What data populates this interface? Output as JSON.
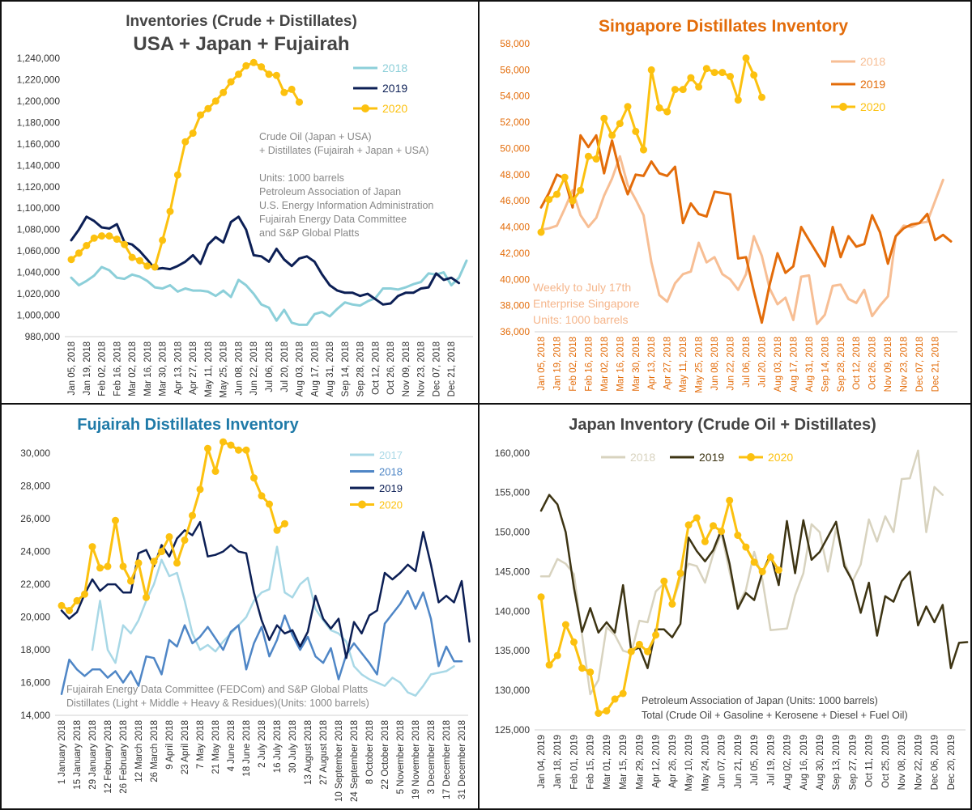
{
  "charts": [
    {
      "id": "usa-japan-fujairah",
      "type": "line",
      "title_line1": "Inventories (Crude + Distillates)",
      "title_line2": "USA + Japan + Fujairah",
      "title_color": "#444444",
      "tick_color": "#333333",
      "ylim": [
        980000,
        1240000
      ],
      "ystep": 20000,
      "yticks_format": "comma",
      "x_count": 53,
      "x_labels": [
        "Jan 05, 2018",
        "Jan 19, 2018",
        "Feb 02, 2018",
        "Feb 16, 2018",
        "Mar 02, 2018",
        "Mar 16, 2018",
        "Mar 30, 2018",
        "Apr 13, 2018",
        "Apr 27, 2018",
        "May 11, 2018",
        "May 25, 2018",
        "Jun 08, 2018",
        "Jun 22, 2018",
        "Jul 06, 2018",
        "Jul 20, 2018",
        "Aug 03, 2018",
        "Aug 17, 2018",
        "Aug 31, 2018",
        "Sep 14, 2018",
        "Sep 28, 2018",
        "Oct 12, 2018",
        "Oct 26, 2018",
        "Nov 09, 2018",
        "Nov 23, 2018",
        "Dec 07, 2018",
        "Dec 21, 2018"
      ],
      "x_label_step": 2,
      "legend": [
        "2018",
        "2019",
        "2020"
      ],
      "annotations": [
        "Crude Oil (Japan + USA)",
        "+ Distillates (Fujairah + Japan + USA)",
        "",
        "Units: 1000 barrels",
        "Petroleum Association of Japan",
        "U.S. Energy Information Administration",
        "Fujairah Energy Data Committee",
        "and S&P Global Platts"
      ],
      "annotation_color": "#888888",
      "series": [
        {
          "name": "2018",
          "color": "#8ccfd9",
          "marker": false,
          "values": [
            1035000,
            1028000,
            1032000,
            1037000,
            1045000,
            1042000,
            1035000,
            1034000,
            1038000,
            1036000,
            1032000,
            1026000,
            1025000,
            1028000,
            1022000,
            1025000,
            1023000,
            1023000,
            1022000,
            1018000,
            1023000,
            1017000,
            1033000,
            1028000,
            1020000,
            1010000,
            1007000,
            995000,
            1005000,
            993000,
            991000,
            991000,
            1001000,
            1003000,
            999000,
            1006000,
            1012000,
            1010000,
            1009000,
            1013000,
            1016000,
            1025000,
            1025000,
            1024000,
            1026000,
            1029000,
            1031000,
            1039000,
            1038000,
            1040000,
            1028000,
            1035000,
            1051000
          ]
        },
        {
          "name": "2019",
          "color": "#0c1f55",
          "marker": false,
          "values": [
            1070000,
            1080000,
            1092000,
            1088000,
            1082000,
            1081000,
            1085000,
            1068000,
            1066000,
            1060000,
            1052000,
            1043000,
            1044000,
            1043000,
            1046000,
            1050000,
            1056000,
            1048000,
            1066000,
            1073000,
            1068000,
            1087000,
            1092000,
            1080000,
            1056000,
            1055000,
            1050000,
            1062000,
            1052000,
            1046000,
            1053000,
            1055000,
            1050000,
            1038000,
            1028000,
            1023000,
            1021000,
            1021000,
            1018000,
            1020000,
            1015000,
            1010000,
            1011000,
            1018000,
            1021000,
            1021000,
            1025000,
            1026000,
            1039000,
            1033000,
            1035000,
            1030000
          ]
        },
        {
          "name": "2020",
          "color": "#fcc10f",
          "marker": true,
          "values": [
            1052000,
            1058000,
            1065000,
            1072000,
            1074000,
            1074000,
            1071000,
            1066000,
            1054000,
            1051000,
            1046000,
            1045000,
            1070000,
            1097000,
            1131000,
            1162000,
            1170000,
            1187000,
            1193000,
            1200000,
            1208000,
            1218000,
            1225000,
            1233000,
            1236000,
            1232000,
            1225000,
            1224000,
            1208000,
            1211000,
            1199000
          ]
        }
      ]
    },
    {
      "id": "singapore",
      "type": "line",
      "title_line1": "Singapore Distillates Inventory",
      "title_line2": "",
      "title_color": "#e36c0a",
      "tick_color": "#e36c0a",
      "ylim": [
        36000,
        58000
      ],
      "ystep": 2000,
      "yticks_format": "comma",
      "x_count": 53,
      "x_labels": [
        "Jan 05, 2018",
        "Jan 19, 2018",
        "Feb 02, 2018",
        "Feb 16, 2018",
        "Mar 02, 2018",
        "Mar 16, 2018",
        "Mar 30, 2018",
        "Apr 13, 2018",
        "Apr 27, 2018",
        "May 11, 2018",
        "May 25, 2018",
        "Jun 08, 2018",
        "Jun 22, 2018",
        "Jul 06, 2018",
        "Jul 20, 2018",
        "Aug 03, 2018",
        "Aug 17, 2018",
        "Aug 31, 2018",
        "Sep 14, 2018",
        "Sep 28, 2018",
        "Oct 12, 2018",
        "Oct 26, 2018",
        "Nov 09, 2018",
        "Nov 23, 2018",
        "Dec 07, 2018",
        "Dec 21, 2018"
      ],
      "x_label_step": 2,
      "legend": [
        "2018",
        "2019",
        "2020"
      ],
      "annotations": [
        "Weekly to July 17th",
        "Enterprise Singapore",
        "Units: 1000 barrels"
      ],
      "annotation_color": "#f5b68c",
      "series": [
        {
          "name": "2018",
          "color": "#f7be94",
          "marker": false,
          "values": [
            43800,
            43900,
            44100,
            45400,
            46800,
            44900,
            44000,
            44700,
            46400,
            47700,
            49400,
            47200,
            46100,
            44900,
            41300,
            38800,
            38300,
            39700,
            40400,
            40600,
            42800,
            41300,
            41700,
            40400,
            40000,
            39200,
            40400,
            43300,
            41800,
            39300,
            38100,
            38600,
            36900,
            40200,
            40300,
            36600,
            37300,
            39500,
            39600,
            38500,
            38200,
            39200,
            37200,
            38000,
            38700,
            43300,
            44100,
            44000,
            44300,
            44400,
            46000,
            47600
          ]
        },
        {
          "name": "2019",
          "color": "#e36c0a",
          "marker": false,
          "values": [
            45500,
            46600,
            48000,
            47700,
            45500,
            51000,
            50100,
            51000,
            48100,
            50600,
            48200,
            46500,
            48000,
            47900,
            49000,
            48100,
            47900,
            48600,
            44300,
            45800,
            45000,
            44800,
            46700,
            46600,
            46500,
            41600,
            41700,
            39100,
            36700,
            39600,
            42000,
            40500,
            41000,
            44000,
            43000,
            42000,
            41000,
            44000,
            41700,
            43300,
            42500,
            42700,
            44900,
            43600,
            41200,
            43300,
            43900,
            44200,
            44300,
            45000,
            43000,
            43400,
            42900
          ]
        },
        {
          "name": "2020",
          "color": "#fcc10f",
          "marker": true,
          "values": [
            43600,
            46100,
            46500,
            47800,
            46000,
            46800,
            49400,
            49200,
            52300,
            51000,
            51900,
            53200,
            51300,
            49900,
            56000,
            53100,
            52800,
            54500,
            54500,
            55400,
            54700,
            56100,
            55800,
            55800,
            55500,
            53700,
            56900,
            55600,
            53900
          ]
        }
      ]
    },
    {
      "id": "fujairah",
      "type": "line",
      "title_line1": "Fujairah Distillates Inventory",
      "title_line2": "",
      "title_color": "#1f7aa8",
      "tick_color": "#333333",
      "ylim": [
        14000,
        31000
      ],
      "ystep": 2000,
      "yticks_format": "comma",
      "x_count": 53,
      "x_labels": [
        "1 January 2018",
        "15 January 2018",
        "29 January 2018",
        "12 February 2018",
        "26 February 2018",
        "12 March 2018",
        "26 March 2018",
        "9 April 2018",
        "23 April 2018",
        "7 May 2018",
        "21 May 2018",
        "4 June 2018",
        "18 June 2018",
        "2 July 2018",
        "16 July 2018",
        "30 July 2018",
        "13 August 2018",
        "27 August 2018",
        "10 September 2018",
        "24 September 2018",
        "8 October 2018",
        "22 October 2018",
        "5 November 2018",
        "19 November 2018",
        "3 December 2018",
        "17 December 2018",
        "31 December 2018"
      ],
      "x_label_step": 2,
      "legend": [
        "2017",
        "2018",
        "2019",
        "2020"
      ],
      "annotations": [
        "Fujairah Energy Data Committee (FEDCom) and S&P Global Platts",
        "Distillates (Light + Middle + Heavy & Residues)(Units: 1000 barrels)"
      ],
      "annotation_color": "#888888",
      "series": [
        {
          "name": "2017",
          "color": "#a8d8e6",
          "marker": false,
          "values": [
            null,
            null,
            null,
            null,
            18000,
            21000,
            18000,
            17200,
            19500,
            19000,
            19800,
            21000,
            22000,
            23500,
            22500,
            22700,
            21000,
            19000,
            18000,
            18300,
            17900,
            18500,
            19000,
            19500,
            20000,
            21000,
            21500,
            21700,
            24300,
            21500,
            21200,
            22000,
            22400,
            20500,
            19800,
            19200,
            19000,
            18500,
            17000,
            16500,
            16200,
            16000,
            15800,
            16300,
            16000,
            15400,
            15200,
            15800,
            16500,
            16600,
            16700,
            17000
          ]
        },
        {
          "name": "2018",
          "color": "#4f86c6",
          "marker": false,
          "values": [
            15300,
            17400,
            16800,
            16400,
            16800,
            16800,
            16300,
            16700,
            16000,
            16700,
            15800,
            17600,
            17500,
            16500,
            18600,
            18200,
            19500,
            18400,
            18800,
            19400,
            18700,
            18000,
            19100,
            19500,
            16800,
            18400,
            19400,
            17600,
            18600,
            20100,
            18900,
            18000,
            18800,
            17600,
            17200,
            18100,
            16200,
            17700,
            18400,
            17800,
            17200,
            16500,
            19600,
            20200,
            20800,
            21600,
            20500,
            21500,
            19900,
            17000,
            18200,
            17300,
            17300
          ]
        },
        {
          "name": "2019",
          "color": "#0c1f55",
          "marker": false,
          "values": [
            20400,
            19900,
            20300,
            21400,
            22300,
            21600,
            22000,
            22000,
            21500,
            21500,
            23900,
            24100,
            23100,
            24400,
            23700,
            24800,
            25300,
            25000,
            25800,
            23700,
            23800,
            24000,
            24400,
            24000,
            23900,
            21500,
            19800,
            18600,
            19500,
            19000,
            19200,
            18200,
            19100,
            21300,
            19900,
            19300,
            19900,
            17500,
            19700,
            19000,
            20100,
            20400,
            22700,
            22300,
            22700,
            23200,
            22800,
            25200,
            23200,
            20900,
            21300,
            20900,
            22200,
            18500
          ]
        },
        {
          "name": "2020",
          "color": "#fcc10f",
          "marker": true,
          "values": [
            20700,
            20400,
            21000,
            21400,
            24300,
            23000,
            23100,
            25900,
            23100,
            22200,
            23300,
            21200,
            23400,
            24000,
            24900,
            23300,
            24700,
            26200,
            27800,
            30300,
            28900,
            30700,
            30500,
            30200,
            30200,
            28500,
            27400,
            26900,
            25300,
            25700
          ]
        }
      ]
    },
    {
      "id": "japan",
      "type": "line",
      "title_line1": "Japan Inventory (Crude Oil + Distillates)",
      "title_line2": "",
      "title_color": "#444444",
      "tick_color": "#333333",
      "ylim": [
        125000,
        161000
      ],
      "ystep": 5000,
      "yticks_format": "comma",
      "x_count": 52,
      "x_labels": [
        "Jan 04, 2019",
        "Jan 18, 2019",
        "Feb 01, 2019",
        "Feb 15, 2019",
        "Mar 01, 2019",
        "Mar 15, 2019",
        "Mar 29, 2019",
        "Apr 12, 2019",
        "Apr 26, 2019",
        "May 10, 2019",
        "May 24, 2019",
        "Jun 07, 2019",
        "Jun 21, 2019",
        "Jul 05, 2019",
        "Jul 19, 2019",
        "Aug 02, 2019",
        "Aug 16, 2019",
        "Aug 30, 2019",
        "Sep 13, 2019",
        "Sep 27, 2019",
        "Oct 11, 2019",
        "Oct 25, 2019",
        "Nov 08, 2019",
        "Nov 22, 2019",
        "Dec 06, 2019",
        "Dec 20, 2019"
      ],
      "x_label_step": 2,
      "legend": [
        "2018",
        "2019",
        "2020"
      ],
      "annotations": [
        "Petroleum Association of Japan  (Units: 1000 barrels)",
        "Total (Crude Oil + Gasoline + Kerosene + Diesel + Fuel Oil)"
      ],
      "annotation_color": "#444444",
      "series": [
        {
          "name": "2018",
          "color": "#d8d3bf",
          "marker": false,
          "values": [
            144400,
            144400,
            146600,
            146000,
            144700,
            137000,
            129500,
            131300,
            138000,
            137000,
            135000,
            134700,
            138800,
            138600,
            142500,
            143500,
            141000,
            144000,
            146000,
            145700,
            143600,
            147200,
            149900,
            145000,
            140700,
            142700,
            147500,
            144000,
            137600,
            137700,
            137800,
            142000,
            144800,
            151000,
            150000,
            145000,
            150500,
            146200,
            143800,
            145900,
            151600,
            148800,
            152000,
            150000,
            156700,
            156800,
            160300,
            150000,
            155700,
            154700
          ]
        },
        {
          "name": "2019",
          "color": "#3d3413",
          "marker": false,
          "values": [
            152700,
            154700,
            153500,
            150000,
            143000,
            137400,
            140400,
            137300,
            138600,
            137300,
            143300,
            135000,
            135400,
            132800,
            137700,
            137700,
            136700,
            138400,
            149300,
            147600,
            146300,
            147700,
            150300,
            146000,
            140300,
            142300,
            141400,
            144900,
            147200,
            143300,
            151400,
            144800,
            151500,
            146500,
            147500,
            149400,
            151300,
            145700,
            143800,
            139800,
            143600,
            136900,
            141900,
            141200,
            143800,
            145000,
            138200,
            140600,
            138600,
            140800,
            132800,
            136000,
            136100
          ]
        },
        {
          "name": "2020",
          "color": "#fcc10f",
          "marker": true,
          "values": [
            141800,
            133200,
            134400,
            138300,
            136100,
            132800,
            132300,
            127100,
            127400,
            128900,
            129600,
            134900,
            135800,
            134900,
            137000,
            143800,
            140900,
            144800,
            150900,
            151800,
            148800,
            150800,
            150100,
            154000,
            149600,
            148100,
            146200,
            145000,
            146800,
            145200
          ]
        }
      ]
    }
  ]
}
